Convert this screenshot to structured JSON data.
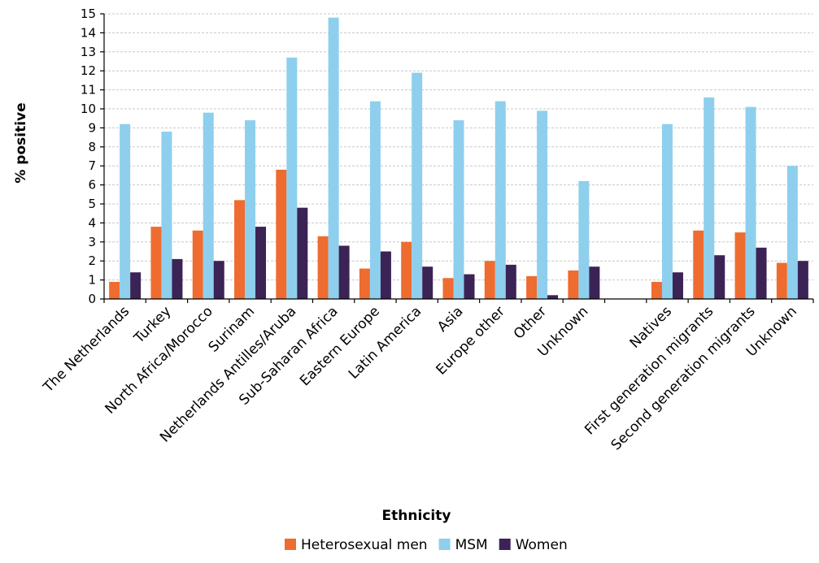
{
  "chart_data": {
    "type": "bar",
    "title": "",
    "xlabel": "Ethnicity",
    "ylabel": "% positive",
    "ylim": [
      0,
      15
    ],
    "yticks": [
      0,
      1,
      2,
      3,
      4,
      5,
      6,
      7,
      8,
      9,
      10,
      11,
      12,
      13,
      14,
      15
    ],
    "grid": true,
    "legend_position": "bottom",
    "categories": [
      "The Netherlands",
      "Turkey",
      "North Africa/Morocco",
      "Surinam",
      "Netherlands Antilles/Aruba",
      "Sub-Saharan Africa",
      "Eastern Europe",
      "Latin America",
      "Asia",
      "Europe other",
      "Other",
      "Unknown",
      "",
      "Natives",
      "First generation migrants",
      "Second generation migrants",
      "Unknown"
    ],
    "series": [
      {
        "name": "Heterosexual men",
        "color": "#ee6c30",
        "values": [
          0.9,
          3.8,
          3.6,
          5.2,
          6.8,
          3.3,
          1.6,
          3.0,
          1.1,
          2.0,
          1.2,
          1.5,
          null,
          0.9,
          3.6,
          3.5,
          1.9
        ]
      },
      {
        "name": "MSM",
        "color": "#8ecfed",
        "values": [
          9.2,
          8.8,
          9.8,
          9.4,
          12.7,
          14.8,
          10.4,
          11.9,
          9.4,
          10.4,
          9.9,
          6.2,
          null,
          9.2,
          10.6,
          10.1,
          7.0
        ]
      },
      {
        "name": "Women",
        "color": "#3b2356",
        "values": [
          1.4,
          2.1,
          2.0,
          3.8,
          4.8,
          2.8,
          2.5,
          1.7,
          1.3,
          1.8,
          0.2,
          1.7,
          null,
          1.4,
          2.3,
          2.7,
          2.0
        ]
      }
    ]
  }
}
